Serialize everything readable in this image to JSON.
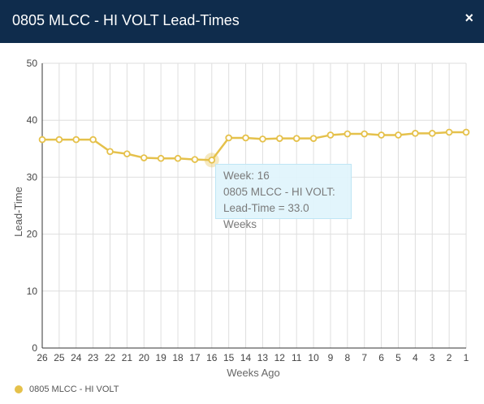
{
  "window": {
    "title": "0805 MLCC - HI VOLT Lead-Times",
    "close_label": "×"
  },
  "colors": {
    "header_bg": "#0f2c4c",
    "series": "#e5c14b",
    "tooltip_bg": "#e0f4fc"
  },
  "tooltip": {
    "line1": "Week: 16",
    "line2": "0805 MLCC - HI VOLT:",
    "line3": "Lead-Time = 33.0 Weeks"
  },
  "legend": {
    "label": "0805 MLCC - HI VOLT"
  },
  "chart_data": {
    "type": "line",
    "xlabel": "Weeks Ago",
    "ylabel": "Lead-Time",
    "ylim": [
      0,
      50
    ],
    "yticks": [
      0,
      10,
      20,
      30,
      40,
      50
    ],
    "categories": [
      "26",
      "25",
      "24",
      "23",
      "22",
      "21",
      "20",
      "19",
      "18",
      "17",
      "16",
      "15",
      "14",
      "13",
      "12",
      "11",
      "10",
      "9",
      "8",
      "7",
      "6",
      "5",
      "4",
      "3",
      "2",
      "1"
    ],
    "series": [
      {
        "name": "0805 MLCC - HI VOLT",
        "values": [
          36.6,
          36.6,
          36.6,
          36.6,
          34.5,
          34.1,
          33.4,
          33.3,
          33.3,
          33.1,
          33.0,
          36.9,
          36.9,
          36.7,
          36.8,
          36.8,
          36.8,
          37.4,
          37.6,
          37.6,
          37.4,
          37.4,
          37.7,
          37.7,
          37.9,
          37.9
        ]
      }
    ],
    "grid": true,
    "legend_position": "bottom-left",
    "highlight": {
      "category": "16"
    }
  }
}
